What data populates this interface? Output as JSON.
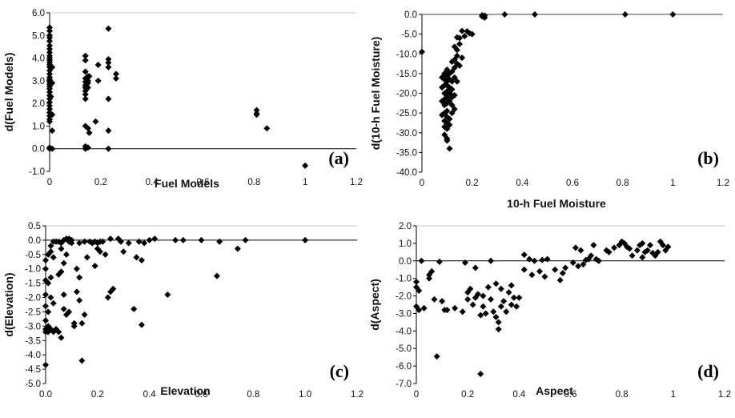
{
  "chart_data": [
    {
      "type": "scatter",
      "panel_label": "(a)",
      "xlabel": "Fuel Models",
      "ylabel": "d(Fuel Models)",
      "xlim": [
        0,
        1.2
      ],
      "ylim": [
        -1.0,
        6.0
      ],
      "xticks": [
        "0",
        "0.2",
        "0.4",
        "0.6",
        "0.8",
        "1",
        "1.2"
      ],
      "yticks": [
        "6.0",
        "5.0",
        "4.0",
        "3.0",
        "2.0",
        "1.0",
        "0.0",
        "-1.0"
      ],
      "grid": false,
      "points": [
        [
          0,
          5.35
        ],
        [
          0,
          5.2
        ],
        [
          0,
          5.0
        ],
        [
          0,
          4.9
        ],
        [
          0,
          4.75
        ],
        [
          0,
          4.55
        ],
        [
          0,
          4.4
        ],
        [
          0,
          4.25
        ],
        [
          0,
          4.1
        ],
        [
          0,
          4.0
        ],
        [
          0,
          3.9
        ],
        [
          0,
          3.8
        ],
        [
          0,
          3.7
        ],
        [
          0,
          3.6
        ],
        [
          0,
          3.45
        ],
        [
          0,
          3.3
        ],
        [
          0,
          3.15
        ],
        [
          0,
          3.05
        ],
        [
          0,
          2.95
        ],
        [
          0,
          2.85
        ],
        [
          0,
          2.75
        ],
        [
          0,
          2.65
        ],
        [
          0,
          2.5
        ],
        [
          0,
          2.35
        ],
        [
          0,
          2.2
        ],
        [
          0,
          2.05
        ],
        [
          0,
          1.9
        ],
        [
          0,
          1.75
        ],
        [
          0,
          1.6
        ],
        [
          0,
          1.45
        ],
        [
          0,
          1.3
        ],
        [
          0,
          1.2
        ],
        [
          0,
          0.05
        ],
        [
          0,
          0.0
        ],
        [
          0.01,
          3.6
        ],
        [
          0.01,
          2.9
        ],
        [
          0.01,
          1.5
        ],
        [
          0.01,
          0.8
        ],
        [
          0.01,
          0.0
        ],
        [
          0.005,
          2.3
        ],
        [
          0.14,
          4.1
        ],
        [
          0.14,
          3.9
        ],
        [
          0.14,
          3.4
        ],
        [
          0.14,
          3.1
        ],
        [
          0.14,
          2.95
        ],
        [
          0.14,
          2.8
        ],
        [
          0.14,
          2.7
        ],
        [
          0.14,
          2.55
        ],
        [
          0.14,
          2.4
        ],
        [
          0.14,
          2.2
        ],
        [
          0.14,
          1.0
        ],
        [
          0.14,
          0.1
        ],
        [
          0.14,
          0.0
        ],
        [
          0.15,
          3.2
        ],
        [
          0.15,
          3.0
        ],
        [
          0.15,
          2.9
        ],
        [
          0.15,
          2.7
        ],
        [
          0.15,
          0.9
        ],
        [
          0.15,
          0.05
        ],
        [
          0.155,
          3.2
        ],
        [
          0.155,
          0.7
        ],
        [
          0.18,
          1.2
        ],
        [
          0.19,
          3.7
        ],
        [
          0.19,
          3.0
        ],
        [
          0.23,
          5.3
        ],
        [
          0.23,
          3.95
        ],
        [
          0.23,
          3.8
        ],
        [
          0.23,
          3.6
        ],
        [
          0.23,
          2.2
        ],
        [
          0.23,
          0.8
        ],
        [
          0.23,
          0.0
        ],
        [
          0.26,
          3.3
        ],
        [
          0.26,
          3.1
        ],
        [
          0.81,
          1.7
        ],
        [
          0.81,
          1.55
        ],
        [
          0.81,
          1.5
        ],
        [
          0.85,
          0.9
        ],
        [
          1.0,
          -0.75
        ]
      ]
    },
    {
      "type": "scatter",
      "panel_label": "(b)",
      "xlabel": "10-h Fuel Moisture",
      "ylabel": "d(10-h Fuel Moisture)",
      "xlim": [
        0,
        1.2
      ],
      "ylim": [
        -40.0,
        0.0
      ],
      "xticks": [
        "0",
        "0.2",
        "0.4",
        "0.6",
        "0.8",
        "1",
        "1.2"
      ],
      "yticks": [
        "0.0",
        "-5.0",
        "-10.0",
        "-15.0",
        "-20.0",
        "-25.0",
        "-30.0",
        "-35.0",
        "-40.0"
      ],
      "grid": false,
      "points": [
        [
          0,
          -9.5
        ],
        [
          0.24,
          -0.2
        ],
        [
          0.24,
          -0.5
        ],
        [
          0.25,
          -0.3
        ],
        [
          0.25,
          -0.8
        ],
        [
          0.33,
          0.0
        ],
        [
          0.45,
          0.0
        ],
        [
          0.81,
          0.0
        ],
        [
          1.0,
          0.0
        ],
        [
          0.18,
          -4.3
        ],
        [
          0.19,
          -4.8
        ],
        [
          0.2,
          -5.0
        ],
        [
          0.17,
          -5.5
        ],
        [
          0.16,
          -4.2
        ],
        [
          0.15,
          -6.0
        ],
        [
          0.15,
          -7.5
        ],
        [
          0.14,
          -5.8
        ],
        [
          0.14,
          -9.0
        ],
        [
          0.14,
          -10.5
        ],
        [
          0.13,
          -8.2
        ],
        [
          0.13,
          -11.5
        ],
        [
          0.13,
          -13.5
        ],
        [
          0.12,
          -12.0
        ],
        [
          0.12,
          -14.5
        ],
        [
          0.12,
          -17.0
        ],
        [
          0.12,
          -19.0
        ],
        [
          0.12,
          -21.0
        ],
        [
          0.11,
          -15.0
        ],
        [
          0.11,
          -16.5
        ],
        [
          0.11,
          -18.5
        ],
        [
          0.11,
          -20.0
        ],
        [
          0.11,
          -22.0
        ],
        [
          0.11,
          -26.5
        ],
        [
          0.11,
          -28.0
        ],
        [
          0.11,
          -34.0
        ],
        [
          0.1,
          -14.0
        ],
        [
          0.1,
          -15.5
        ],
        [
          0.1,
          -17.0
        ],
        [
          0.1,
          -18.0
        ],
        [
          0.1,
          -19.5
        ],
        [
          0.1,
          -21.0
        ],
        [
          0.1,
          -22.5
        ],
        [
          0.1,
          -24.5
        ],
        [
          0.1,
          -26.0
        ],
        [
          0.1,
          -27.5
        ],
        [
          0.1,
          -29.0
        ],
        [
          0.1,
          -31.5
        ],
        [
          0.1,
          -32.0
        ],
        [
          0.09,
          -15.0
        ],
        [
          0.09,
          -16.5
        ],
        [
          0.09,
          -18.0
        ],
        [
          0.09,
          -20.0
        ],
        [
          0.09,
          -21.5
        ],
        [
          0.09,
          -23.0
        ],
        [
          0.09,
          -25.0
        ],
        [
          0.09,
          -27.0
        ],
        [
          0.09,
          -28.5
        ],
        [
          0.09,
          -30.5
        ],
        [
          0.08,
          -16.0
        ],
        [
          0.08,
          -18.5
        ],
        [
          0.08,
          -22.0
        ],
        [
          0.08,
          -25.5
        ],
        [
          0.12,
          -25.0
        ],
        [
          0.13,
          -24.0
        ],
        [
          0.12,
          -23.0
        ],
        [
          0.14,
          -17.0
        ],
        [
          0.13,
          -16.0
        ],
        [
          0.15,
          -13.0
        ],
        [
          0.16,
          -11.0
        ],
        [
          0.14,
          -12.5
        ],
        [
          0.13,
          -20.5
        ],
        [
          0.12,
          -20.5
        ]
      ]
    },
    {
      "type": "scatter",
      "panel_label": "(c)",
      "xlabel": "Elevation",
      "ylabel": "d(Elevation)",
      "xlim": [
        0,
        1.2
      ],
      "ylim": [
        -5.0,
        0.5
      ],
      "xticks": [
        "0.0",
        "0.2",
        "0.4",
        "0.6",
        "0.8",
        "1.0",
        "1.2"
      ],
      "yticks": [
        "0.5",
        "0.0",
        "-0.5",
        "-1.0",
        "-1.5",
        "-2.0",
        "-2.5",
        "-3.0",
        "-3.5",
        "-4.0",
        "-4.5",
        "-5.0"
      ],
      "grid": false,
      "points": [
        [
          0.0,
          -0.7
        ],
        [
          0.0,
          -1.0
        ],
        [
          0.0,
          -1.4
        ],
        [
          0.0,
          -1.9
        ],
        [
          0.0,
          -2.3
        ],
        [
          0.0,
          -2.8
        ],
        [
          0.0,
          -3.1
        ],
        [
          0.0,
          -3.2
        ],
        [
          0.0,
          -4.35
        ],
        [
          0.01,
          -0.5
        ],
        [
          0.01,
          -1.5
        ],
        [
          0.01,
          -2.5
        ],
        [
          0.01,
          -3.0
        ],
        [
          0.01,
          -3.2
        ],
        [
          0.02,
          -0.2
        ],
        [
          0.02,
          -0.4
        ],
        [
          0.02,
          -1.3
        ],
        [
          0.02,
          -2.0
        ],
        [
          0.02,
          -3.1
        ],
        [
          0.03,
          -0.05
        ],
        [
          0.03,
          -0.6
        ],
        [
          0.03,
          -2.2
        ],
        [
          0.03,
          -3.2
        ],
        [
          0.04,
          -0.05
        ],
        [
          0.04,
          -3.1
        ],
        [
          0.05,
          -0.05
        ],
        [
          0.05,
          -1.2
        ],
        [
          0.05,
          -3.2
        ],
        [
          0.06,
          -0.1
        ],
        [
          0.06,
          -0.3
        ],
        [
          0.06,
          -1.1
        ],
        [
          0.06,
          -3.4
        ],
        [
          0.07,
          -0.0
        ],
        [
          0.07,
          -0.8
        ],
        [
          0.07,
          -1.9
        ],
        [
          0.07,
          -2.4
        ],
        [
          0.08,
          0.05
        ],
        [
          0.08,
          -0.5
        ],
        [
          0.08,
          -2.6
        ],
        [
          0.09,
          0.05
        ],
        [
          0.09,
          -0.05
        ],
        [
          0.09,
          -2.5
        ],
        [
          0.1,
          0.0
        ],
        [
          0.1,
          -0.1
        ],
        [
          0.11,
          -2.9
        ],
        [
          0.11,
          -3.0
        ],
        [
          0.12,
          -1.0
        ],
        [
          0.12,
          -1.8
        ],
        [
          0.13,
          -0.1
        ],
        [
          0.13,
          -1.3
        ],
        [
          0.13,
          -2.1
        ],
        [
          0.14,
          -4.2
        ],
        [
          0.14,
          -2.9
        ],
        [
          0.15,
          -0.05
        ],
        [
          0.15,
          -2.6
        ],
        [
          0.16,
          -0.6
        ],
        [
          0.17,
          -0.05
        ],
        [
          0.18,
          -0.1
        ],
        [
          0.19,
          -0.05
        ],
        [
          0.19,
          -0.9
        ],
        [
          0.2,
          -0.1
        ],
        [
          0.2,
          -0.3
        ],
        [
          0.21,
          -0.05
        ],
        [
          0.21,
          -0.4
        ],
        [
          0.22,
          -0.05
        ],
        [
          0.23,
          -0.5
        ],
        [
          0.24,
          -2.0
        ],
        [
          0.25,
          0.05
        ],
        [
          0.25,
          -1.8
        ],
        [
          0.26,
          -1.7
        ],
        [
          0.28,
          0.05
        ],
        [
          0.29,
          -0.05
        ],
        [
          0.3,
          -0.4
        ],
        [
          0.32,
          -0.1
        ],
        [
          0.34,
          -2.4
        ],
        [
          0.35,
          -0.6
        ],
        [
          0.36,
          -0.05
        ],
        [
          0.37,
          -2.95
        ],
        [
          0.37,
          -0.7
        ],
        [
          0.38,
          -0.1
        ],
        [
          0.4,
          0.0
        ],
        [
          0.42,
          0.05
        ],
        [
          0.47,
          -1.9
        ],
        [
          0.5,
          0.0
        ],
        [
          0.53,
          0.0
        ],
        [
          0.6,
          0.0
        ],
        [
          0.66,
          -1.25
        ],
        [
          0.67,
          -0.05
        ],
        [
          0.74,
          -0.3
        ],
        [
          0.77,
          0.0
        ],
        [
          1.0,
          0.0
        ]
      ]
    },
    {
      "type": "scatter",
      "panel_label": "(d)",
      "xlabel": "Aspect",
      "ylabel": "d(Aspect)",
      "xlim": [
        0,
        1.2
      ],
      "ylim": [
        -7.0,
        2.0
      ],
      "xticks": [
        "0",
        "0.2",
        "0.4",
        "0.6",
        "0.8",
        "1",
        "1.2"
      ],
      "yticks": [
        "2.0",
        "1.0",
        "0.0",
        "-1.0",
        "-2.0",
        "-3.0",
        "-4.0",
        "-5.0",
        "-6.0",
        "-7.0"
      ],
      "grid": false,
      "points": [
        [
          0.0,
          -1.2
        ],
        [
          0.0,
          -1.5
        ],
        [
          0.0,
          -2.6
        ],
        [
          0.01,
          -1.7
        ],
        [
          0.01,
          -2.8
        ],
        [
          0.02,
          0.0
        ],
        [
          0.03,
          -2.7
        ],
        [
          0.05,
          -0.8
        ],
        [
          0.05,
          -1.0
        ],
        [
          0.06,
          -0.6
        ],
        [
          0.07,
          -2.2
        ],
        [
          0.08,
          -5.45
        ],
        [
          0.09,
          -0.05
        ],
        [
          0.1,
          -2.3
        ],
        [
          0.11,
          -2.8
        ],
        [
          0.12,
          -2.8
        ],
        [
          0.15,
          -2.7
        ],
        [
          0.18,
          -2.9
        ],
        [
          0.19,
          -0.1
        ],
        [
          0.2,
          -1.8
        ],
        [
          0.2,
          -2.2
        ],
        [
          0.21,
          -1.6
        ],
        [
          0.22,
          -2.5
        ],
        [
          0.23,
          -2.1
        ],
        [
          0.23,
          -0.4
        ],
        [
          0.24,
          -1.9
        ],
        [
          0.25,
          -6.45
        ],
        [
          0.25,
          -3.1
        ],
        [
          0.26,
          -2.6
        ],
        [
          0.26,
          -2.0
        ],
        [
          0.27,
          -3.0
        ],
        [
          0.28,
          -1.5
        ],
        [
          0.29,
          -2.2
        ],
        [
          0.29,
          -0.0
        ],
        [
          0.3,
          -2.9
        ],
        [
          0.31,
          -1.3
        ],
        [
          0.31,
          -3.2
        ],
        [
          0.32,
          -3.5
        ],
        [
          0.32,
          -3.9
        ],
        [
          0.33,
          -2.6
        ],
        [
          0.33,
          -1.6
        ],
        [
          0.34,
          -2.3
        ],
        [
          0.35,
          -2.9
        ],
        [
          0.36,
          -1.8
        ],
        [
          0.37,
          -2.5
        ],
        [
          0.37,
          -1.4
        ],
        [
          0.38,
          -2.1
        ],
        [
          0.39,
          -2.6
        ],
        [
          0.4,
          -2.1
        ],
        [
          0.42,
          0.35
        ],
        [
          0.42,
          -0.5
        ],
        [
          0.44,
          0.1
        ],
        [
          0.45,
          -0.8
        ],
        [
          0.46,
          0.0
        ],
        [
          0.48,
          -0.6
        ],
        [
          0.49,
          0.05
        ],
        [
          0.5,
          -0.9
        ],
        [
          0.51,
          0.1
        ],
        [
          0.54,
          -0.5
        ],
        [
          0.56,
          -1.1
        ],
        [
          0.57,
          -0.7
        ],
        [
          0.58,
          -0.4
        ],
        [
          0.61,
          -0.1
        ],
        [
          0.62,
          0.75
        ],
        [
          0.63,
          -0.3
        ],
        [
          0.64,
          0.6
        ],
        [
          0.65,
          -0.2
        ],
        [
          0.66,
          0.05
        ],
        [
          0.67,
          0.1
        ],
        [
          0.68,
          0.3
        ],
        [
          0.69,
          0.9
        ],
        [
          0.7,
          0.1
        ],
        [
          0.71,
          0.0
        ],
        [
          0.74,
          0.6
        ],
        [
          0.75,
          0.5
        ],
        [
          0.77,
          0.75
        ],
        [
          0.79,
          0.9
        ],
        [
          0.8,
          1.1
        ],
        [
          0.81,
          1.0
        ],
        [
          0.82,
          0.8
        ],
        [
          0.83,
          0.7
        ],
        [
          0.84,
          0.3
        ],
        [
          0.86,
          0.6
        ],
        [
          0.87,
          0.9
        ],
        [
          0.88,
          1.0
        ],
        [
          0.88,
          0.2
        ],
        [
          0.89,
          0.5
        ],
        [
          0.9,
          0.6
        ],
        [
          0.91,
          0.9
        ],
        [
          0.92,
          0.45
        ],
        [
          0.93,
          0.3
        ],
        [
          0.94,
          0.5
        ],
        [
          0.95,
          1.1
        ],
        [
          0.96,
          0.9
        ],
        [
          0.97,
          0.6
        ],
        [
          0.98,
          0.8
        ]
      ]
    }
  ]
}
